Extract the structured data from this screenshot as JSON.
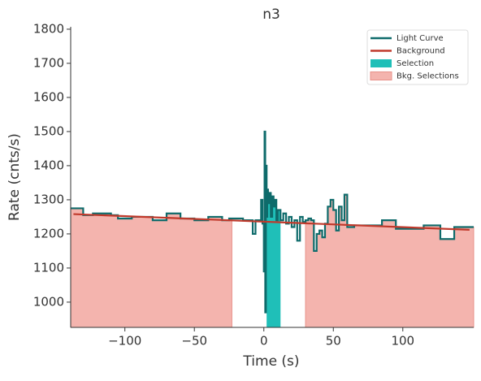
{
  "chart_data": {
    "type": "step",
    "title": "n3",
    "xlabel": "Time (s)",
    "ylabel": "Rate (cnts/s)",
    "xlim": [
      -139,
      151
    ],
    "ylim": [
      926,
      1807
    ],
    "xticks": [
      {
        "value": -100,
        "label": "−100"
      },
      {
        "value": -50,
        "label": "−50"
      },
      0,
      50,
      100
    ],
    "yticks": [
      1000,
      1100,
      1200,
      1300,
      1400,
      1500,
      1600,
      1700,
      1800
    ],
    "legend": "upper right",
    "series": [
      {
        "name": "Light Curve",
        "color": "#0e6b6b",
        "x": [
          -139,
          -130,
          -123,
          -110,
          -105,
          -95,
          -80,
          -70,
          -60,
          -50,
          -40,
          -30,
          -25,
          -15,
          -8,
          -6,
          -2,
          -1,
          0,
          0.5,
          1,
          1.5,
          2,
          2.5,
          3,
          4,
          5,
          6,
          7,
          8,
          9,
          10,
          12,
          14,
          16,
          18,
          20,
          22,
          24,
          26,
          28,
          30,
          32,
          34,
          36,
          38,
          40,
          42,
          44,
          46,
          48,
          50,
          52,
          54,
          56,
          58,
          60,
          65,
          75,
          85,
          95,
          115,
          127,
          137,
          151
        ],
        "values": [
          1275,
          1255,
          1260,
          1255,
          1245,
          1250,
          1240,
          1260,
          1245,
          1240,
          1250,
          1240,
          1245,
          1240,
          1200,
          1240,
          1300,
          1230,
          1090,
          1500,
          970,
          1400,
          1250,
          1330,
          1290,
          1320,
          1250,
          1310,
          1280,
          1300,
          1240,
          1270,
          1240,
          1260,
          1230,
          1250,
          1220,
          1240,
          1180,
          1250,
          1235,
          1240,
          1245,
          1240,
          1150,
          1200,
          1210,
          1190,
          1230,
          1280,
          1300,
          1270,
          1210,
          1280,
          1240,
          1315,
          1220,
          1225,
          1225,
          1240,
          1215,
          1225,
          1185,
          1220,
          1220
        ]
      },
      {
        "name": "Background",
        "color": "#c0392b",
        "x": [
          -137,
          148
        ],
        "values": [
          1258,
          1212
        ]
      }
    ],
    "selections": [
      {
        "name": "Selection",
        "color": "#1fbfb8",
        "ranges": [
          [
            2,
            12
          ]
        ]
      },
      {
        "name": "Bkg. Selections",
        "color": "#f4b4ae",
        "ranges": [
          [
            -139,
            -23
          ],
          [
            30,
            151
          ]
        ]
      }
    ]
  }
}
